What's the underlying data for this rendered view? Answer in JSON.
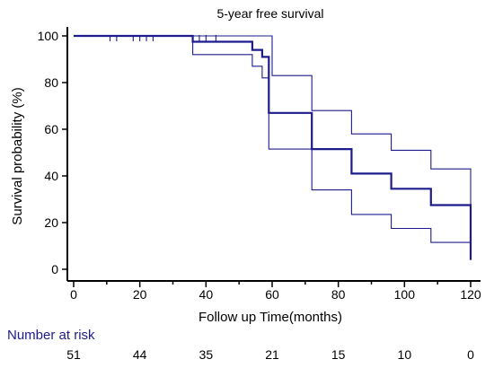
{
  "chart_data": {
    "type": "line",
    "title": "5-year free survival",
    "xlabel": "Follow up Time(months)",
    "ylabel": "Survival probability (%)",
    "xlim": [
      0,
      120
    ],
    "ylim": [
      0,
      100
    ],
    "x_ticks": [
      0,
      20,
      40,
      60,
      80,
      100,
      120
    ],
    "y_ticks": [
      0,
      20,
      40,
      60,
      80,
      100
    ],
    "grid": false,
    "series": [
      {
        "role": "estimate",
        "style": "step",
        "points": [
          [
            0,
            100
          ],
          [
            36,
            100
          ],
          [
            36,
            97.5
          ],
          [
            54,
            97.5
          ],
          [
            54,
            94
          ],
          [
            57,
            94
          ],
          [
            57,
            91
          ],
          [
            59,
            91
          ],
          [
            59,
            67
          ],
          [
            72,
            67
          ],
          [
            72,
            51.5
          ],
          [
            84,
            51.5
          ],
          [
            84,
            41
          ],
          [
            96,
            41
          ],
          [
            96,
            34.5
          ],
          [
            108,
            34.5
          ],
          [
            108,
            27.5
          ],
          [
            120,
            27.5
          ],
          [
            120,
            4
          ]
        ]
      },
      {
        "role": "upper confidence limit",
        "style": "step",
        "points": [
          [
            0,
            100
          ],
          [
            60,
            100
          ],
          [
            60,
            83
          ],
          [
            72,
            83
          ],
          [
            72,
            68
          ],
          [
            84,
            68
          ],
          [
            84,
            58
          ],
          [
            96,
            58
          ],
          [
            96,
            51
          ],
          [
            108,
            51
          ],
          [
            108,
            43
          ],
          [
            120,
            43
          ],
          [
            120,
            27.5
          ]
        ]
      },
      {
        "role": "lower confidence limit",
        "style": "step",
        "points": [
          [
            0,
            100
          ],
          [
            36,
            100
          ],
          [
            36,
            92
          ],
          [
            54,
            92
          ],
          [
            54,
            87
          ],
          [
            57,
            87
          ],
          [
            57,
            82
          ],
          [
            59,
            82
          ],
          [
            59,
            51.5
          ],
          [
            72,
            51.5
          ],
          [
            72,
            34
          ],
          [
            84,
            34
          ],
          [
            84,
            23.5
          ],
          [
            96,
            23.5
          ],
          [
            96,
            17.5
          ],
          [
            108,
            17.5
          ],
          [
            108,
            11.5
          ],
          [
            120,
            11.5
          ],
          [
            120,
            4
          ]
        ]
      }
    ],
    "censor_marks_x": [
      11,
      13,
      18,
      20,
      22,
      24,
      38,
      40,
      43
    ],
    "risk_table": {
      "label": "Number at risk",
      "times": [
        0,
        20,
        40,
        60,
        80,
        100,
        120
      ],
      "counts": [
        "51",
        "44",
        "35",
        "21",
        "15",
        "10",
        "0"
      ]
    },
    "colors": {
      "curve": "#1c1c8c",
      "axis": "#000000",
      "risk_label": "#1c1c8c",
      "text": "#000000"
    }
  }
}
